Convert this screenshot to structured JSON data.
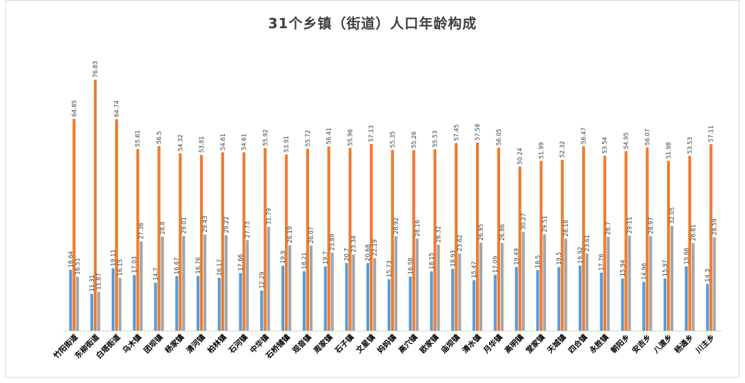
{
  "chart_data": {
    "type": "bar",
    "title": "31个乡镇（街道）人口年龄构成",
    "xlabel": "",
    "ylabel": "",
    "ylim": [
      0,
      85
    ],
    "grid": false,
    "categories": [
      "竹阳街道",
      "东柳街道",
      "白塔街道",
      "乌木镇",
      "团坝镇",
      "杨家镇",
      "清河镇",
      "柏林镇",
      "石河镇",
      "中华镇",
      "石桥铺镇",
      "观音镇",
      "周家镇",
      "石子镇",
      "文星镇",
      "妈妈镇",
      "高穴镇",
      "欧家镇",
      "庙坝镇",
      "清水镇",
      "月华镇",
      "高明镇",
      "堂家镇",
      "天城镇",
      "四合镇",
      "永胜镇",
      "朝阳乡",
      "安吉乡",
      "八渡乡",
      "杨通乡",
      "川主乡"
    ],
    "series": [
      {
        "color": "#5b9bd5",
        "values": [
          18.64,
          11.31,
          19.11,
          17.03,
          14.7,
          16.67,
          16.76,
          16.17,
          17.66,
          12.29,
          19.9,
          18.21,
          19.7,
          20.7,
          20.68,
          15.73,
          16.58,
          18.15,
          18.93,
          15.47,
          17.09,
          19.49,
          18.5,
          19.5,
          19.92,
          17.76,
          15.94,
          14.96,
          15.97,
          19.66,
          14.3
        ]
      },
      {
        "color": "#ed7d31",
        "values": [
          64.85,
          76.83,
          64.74,
          55.61,
          56.5,
          54.32,
          53.81,
          54.61,
          54.61,
          55.92,
          53.91,
          55.72,
          56.41,
          55.96,
          57.13,
          55.35,
          55.26,
          55.53,
          57.45,
          57.58,
          56.05,
          50.24,
          51.99,
          52.32,
          56.47,
          53.54,
          54.95,
          56.07,
          51.98,
          53.53,
          57.11
        ]
      },
      {
        "color": "#a5a5a5",
        "values": [
          16.51,
          11.87,
          16.15,
          27.36,
          28.8,
          29.01,
          29.43,
          29.22,
          27.73,
          31.79,
          26.19,
          26.07,
          23.89,
          23.34,
          22.19,
          28.92,
          28.16,
          26.32,
          23.62,
          26.95,
          26.86,
          30.27,
          29.51,
          28.18,
          23.61,
          28.7,
          29.11,
          28.97,
          32.05,
          26.81,
          28.59
        ]
      }
    ]
  }
}
